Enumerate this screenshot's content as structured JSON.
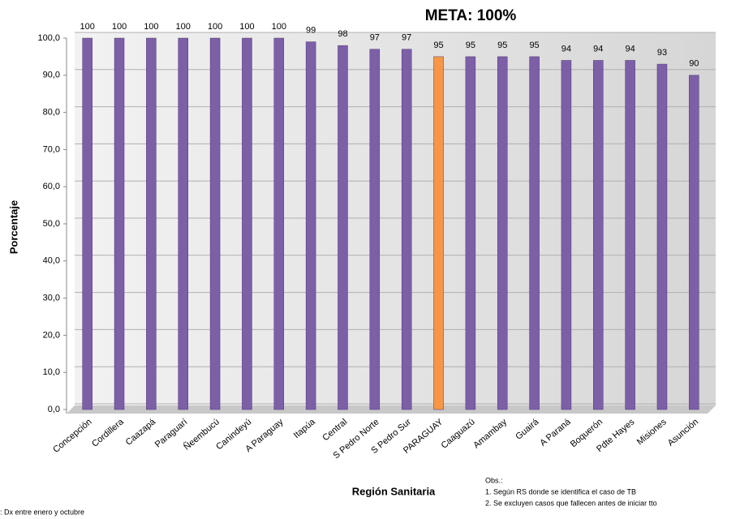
{
  "chart_data": {
    "type": "bar",
    "title": "META: 100%",
    "y_label": "Porcentaje",
    "x_label": "Región Sanitaria",
    "categories": [
      "Concepción",
      "Cordillera",
      "Caazapá",
      "Paraguarí",
      "Ñeembucú",
      "Canindeyú",
      "A Paraguay",
      "Itapúa",
      "Central",
      "S Pedro Norte",
      "S Pedro Sur",
      "PARAGUAY",
      "Caaguazú",
      "Amambay",
      "Guairá",
      "A Paraná",
      "Boquerón",
      "Pdte Hayes",
      "Misiones",
      "Asunción"
    ],
    "values": [
      100,
      100,
      100,
      100,
      100,
      100,
      100,
      99,
      98,
      97,
      97,
      95,
      95,
      95,
      95,
      94,
      94,
      94,
      93,
      90
    ],
    "colors": [
      "#7d5fa8",
      "#7d5fa8",
      "#7d5fa8",
      "#7d5fa8",
      "#7d5fa8",
      "#7d5fa8",
      "#7d5fa8",
      "#7d5fa8",
      "#7d5fa8",
      "#7d5fa8",
      "#7d5fa8",
      "#f79646",
      "#7d5fa8",
      "#7d5fa8",
      "#7d5fa8",
      "#7d5fa8",
      "#7d5fa8",
      "#7d5fa8",
      "#7d5fa8",
      "#7d5fa8"
    ],
    "ylim": [
      0,
      100
    ],
    "yticks": [
      {
        "value": 0,
        "label": "0,0"
      },
      {
        "value": 10,
        "label": "10,0"
      },
      {
        "value": 20,
        "label": "20,0"
      },
      {
        "value": 30,
        "label": "30,0"
      },
      {
        "value": 40,
        "label": "40,0"
      },
      {
        "value": 50,
        "label": "50,0"
      },
      {
        "value": 60,
        "label": "60,0"
      },
      {
        "value": 70,
        "label": "70,0"
      },
      {
        "value": 80,
        "label": "80,0"
      },
      {
        "value": 90,
        "label": "90,0"
      },
      {
        "value": 100,
        "label": "100,0"
      }
    ],
    "grid": true,
    "notes_title": "Obs.:",
    "notes": [
      "1.   Según RS donde se identifica el caso de TB",
      "2.   Se excluyen casos que fallecen antes de iniciar tto"
    ],
    "footnote": ": Dx entre enero y octubre"
  }
}
